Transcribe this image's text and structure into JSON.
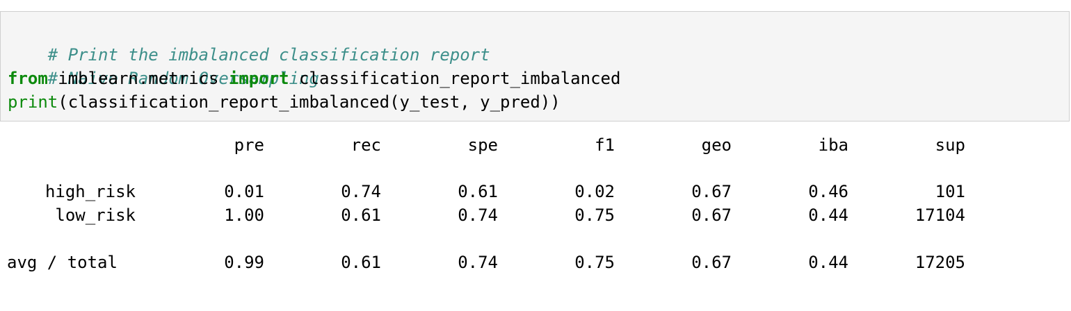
{
  "code": {
    "comment1": "# Print the imbalanced classification report",
    "comment2": "# Naive Random Oversampling",
    "line3": {
      "kw_from": "from",
      "module": " imblearn.metrics ",
      "kw_import": "import",
      "name": " classification_report_imbalanced"
    },
    "line4": {
      "builtin_print": "print",
      "rest": "(classification_report_imbalanced(y_test, y_pred))"
    }
  },
  "report": {
    "headers": [
      "pre",
      "rec",
      "spe",
      "f1",
      "geo",
      "iba",
      "sup"
    ],
    "rows": [
      {
        "label": "high_risk",
        "values": [
          "0.01",
          "0.74",
          "0.61",
          "0.02",
          "0.67",
          "0.46",
          "101"
        ]
      },
      {
        "label": "low_risk",
        "values": [
          "1.00",
          "0.61",
          "0.74",
          "0.75",
          "0.67",
          "0.44",
          "17104"
        ]
      }
    ],
    "total": {
      "label": "avg / total",
      "values": [
        "0.99",
        "0.61",
        "0.74",
        "0.75",
        "0.67",
        "0.44",
        "17205"
      ]
    }
  }
}
